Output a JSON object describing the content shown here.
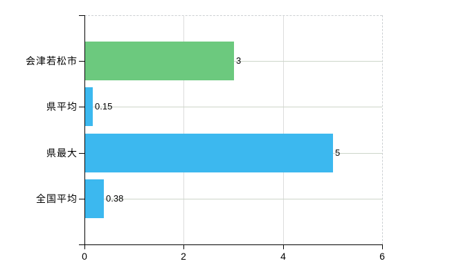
{
  "chart_data": {
    "type": "bar",
    "orientation": "horizontal",
    "categories": [
      "会津若松市",
      "県平均",
      "県最大",
      "全国平均"
    ],
    "values": [
      3,
      0.15,
      5,
      0.38
    ],
    "value_labels": [
      "3",
      "0.15",
      "5",
      "0.38"
    ],
    "bar_colors": [
      "#6cc97e",
      "#3cb8ef",
      "#3cb8ef",
      "#3cb8ef"
    ],
    "xlim": [
      0,
      6
    ],
    "x_ticks": [
      0,
      2,
      4,
      6
    ],
    "x_tick_labels": [
      "0",
      "2",
      "4",
      "6"
    ],
    "grid": true,
    "legend": false
  },
  "colors": {
    "background": "#ffffff",
    "axis": "#000000",
    "label_text": "#000000",
    "h_gridline": "#ccd5c9",
    "v_gridline": "#dcdcdc",
    "dashed_border": "#cbcfd2",
    "bar_green": "#6cc97e",
    "bar_blue": "#3cb8ef"
  }
}
